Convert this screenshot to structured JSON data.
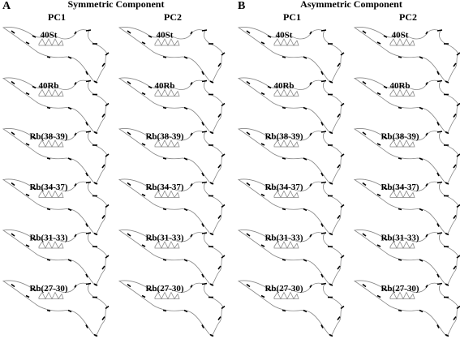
{
  "panels": [
    {
      "letter": "A",
      "title": "Symmetric Component",
      "columns": [
        "PC1",
        "PC2"
      ],
      "rows": [
        "40St",
        "40Rb",
        "Rb(38-39)",
        "Rb(34-37)",
        "Rb(31-33)",
        "Rb(27-30)"
      ]
    },
    {
      "letter": "B",
      "title": "Asymmetric Component",
      "columns": [
        "PC1",
        "PC2"
      ],
      "rows": [
        "40St",
        "40Rb",
        "Rb(38-39)",
        "Rb(34-37)",
        "Rb(31-33)",
        "Rb(27-30)"
      ]
    }
  ]
}
